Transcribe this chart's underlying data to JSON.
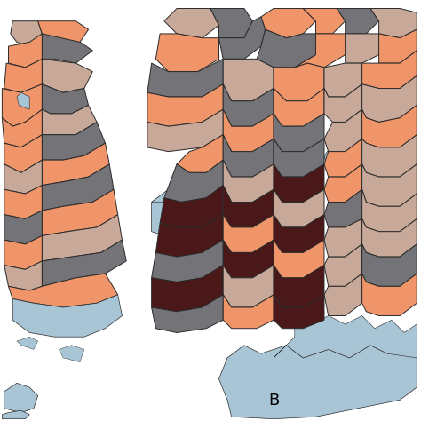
{
  "background_color": "#ffffff",
  "water_color": "#a8c5d5",
  "label_b": "B",
  "label_fontsize": 13,
  "colors": {
    "salmon": "#f0956a",
    "light_brown": "#c8a898",
    "dark_gray": "#737378",
    "medium_gray": "#909095",
    "dark_brown": "#4a1818",
    "border": "#2a2a2a"
  },
  "figsize": [
    4.74,
    4.74
  ],
  "dpi": 100
}
